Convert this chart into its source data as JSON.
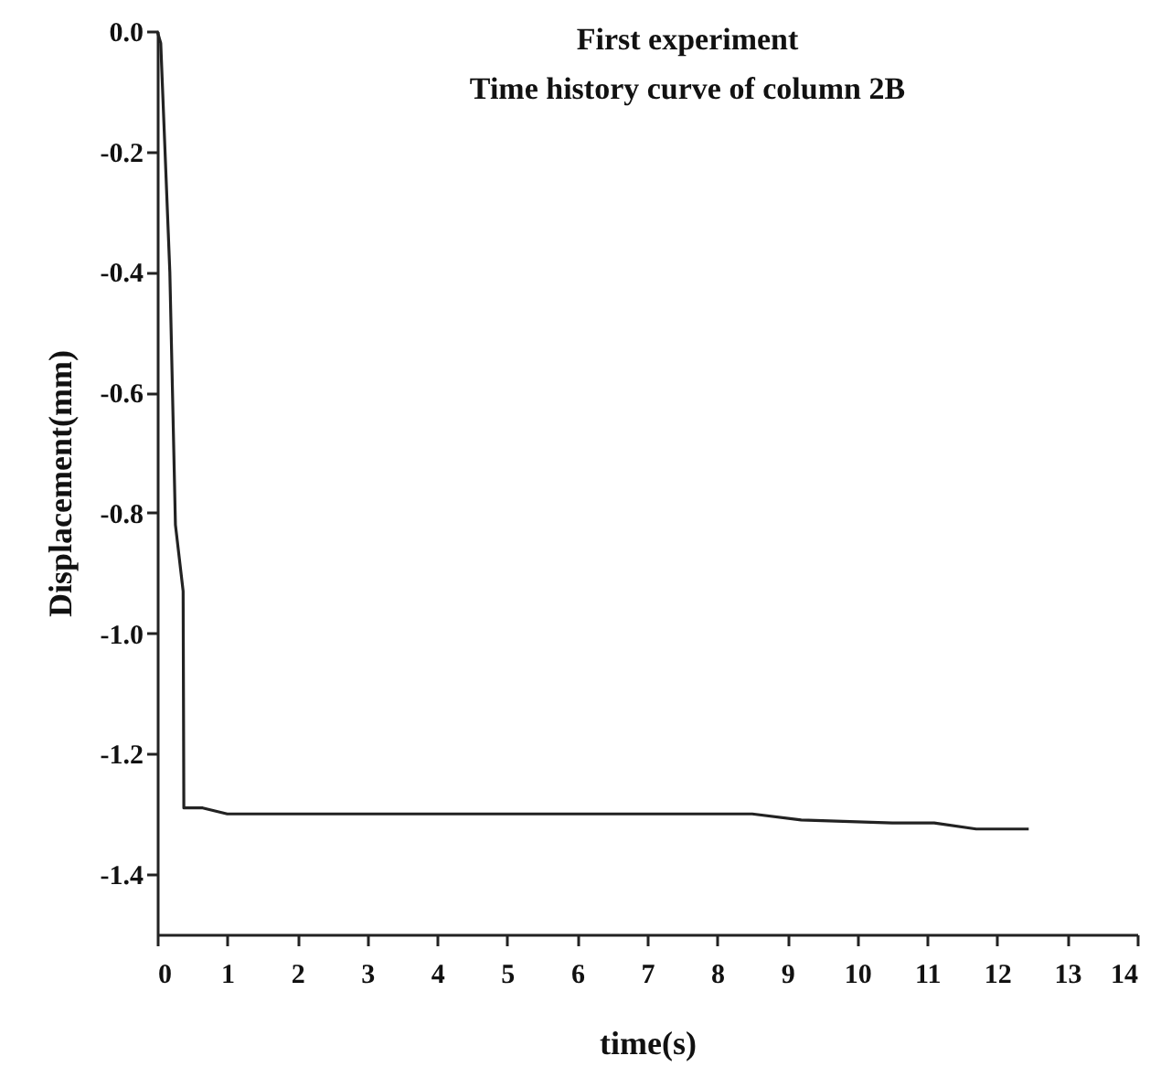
{
  "chart_data": {
    "type": "line",
    "title": "First experiment",
    "subtitle": "Time history curve of column 2B",
    "xlabel": "time(s)",
    "ylabel": "Displacement(mm)",
    "x": [
      0,
      0.05,
      0.18,
      0.26,
      0.37,
      0.38,
      0.65,
      1.0,
      4.0,
      8.5,
      9.2,
      10.5,
      11.1,
      11.7,
      12.45
    ],
    "series": [
      {
        "color": "#222222",
        "values": [
          0,
          -0.02,
          -0.4,
          -0.82,
          -0.93,
          -1.29,
          -1.29,
          -1.3,
          -1.3,
          -1.3,
          -1.31,
          -1.315,
          -1.315,
          -1.325,
          -1.325
        ]
      }
    ],
    "xlim": [
      0,
      14
    ],
    "xticks": [
      0,
      1,
      2,
      3,
      4,
      5,
      6,
      7,
      8,
      9,
      10,
      11,
      12,
      13,
      14
    ],
    "ylim": [
      -1.5,
      0
    ],
    "yticks": [
      {
        "value": 0,
        "label": "0.0"
      },
      -0.2,
      -0.4,
      -0.6,
      -0.8,
      {
        "value": -1,
        "label": "-1.0"
      },
      -1.2,
      -1.4
    ],
    "grid": false,
    "marker": "none",
    "line_style": "solid"
  }
}
